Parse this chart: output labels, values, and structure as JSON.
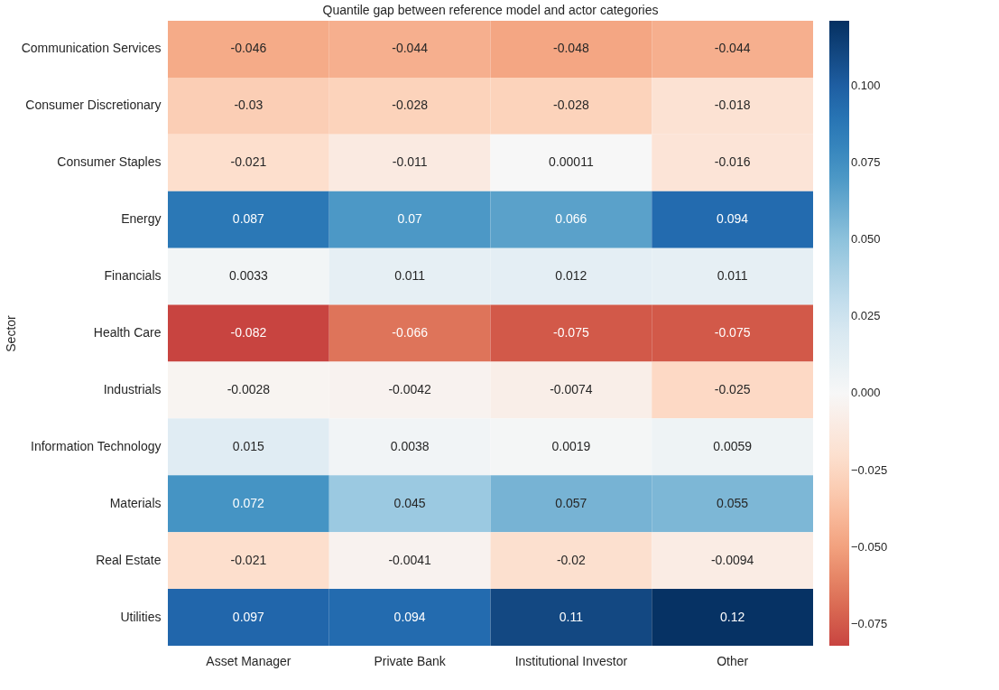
{
  "chart_data": {
    "type": "heatmap",
    "title": "Quantile gap between reference model and actor categories",
    "ylabel": "Sector",
    "categories": [
      "Asset Manager",
      "Private Bank",
      "Institutional Investor",
      "Other"
    ],
    "y_categories": [
      "Communication Services",
      "Consumer Discretionary",
      "Consumer Staples",
      "Energy",
      "Financials",
      "Health Care",
      "Industrials",
      "Information Technology",
      "Materials",
      "Real Estate",
      "Utilities"
    ],
    "cells": [
      [
        -0.046,
        -0.044,
        -0.048,
        -0.044
      ],
      [
        -0.03,
        -0.028,
        -0.028,
        -0.018
      ],
      [
        -0.021,
        -0.011,
        0.00011,
        -0.016
      ],
      [
        0.087,
        0.07,
        0.066,
        0.094
      ],
      [
        0.0033,
        0.011,
        0.012,
        0.011
      ],
      [
        -0.082,
        -0.066,
        -0.075,
        -0.075
      ],
      [
        -0.0028,
        -0.0042,
        -0.0074,
        -0.025
      ],
      [
        0.015,
        0.0038,
        0.0019,
        0.0059
      ],
      [
        0.072,
        0.045,
        0.057,
        0.055
      ],
      [
        -0.021,
        -0.0041,
        -0.02,
        -0.0094
      ],
      [
        0.097,
        0.094,
        0.11,
        0.12
      ]
    ],
    "data_labels": true,
    "clim": [
      -0.082,
      0.121
    ],
    "cticks": [
      -0.075,
      {
        "value": -0.05,
        "label": "−0.050"
      },
      -0.025,
      {
        "value": 0,
        "label": "0.000"
      },
      0.025,
      {
        "value": 0.05,
        "label": "0.050"
      },
      0.075,
      {
        "value": 0.1,
        "label": "0.100"
      }
    ]
  }
}
